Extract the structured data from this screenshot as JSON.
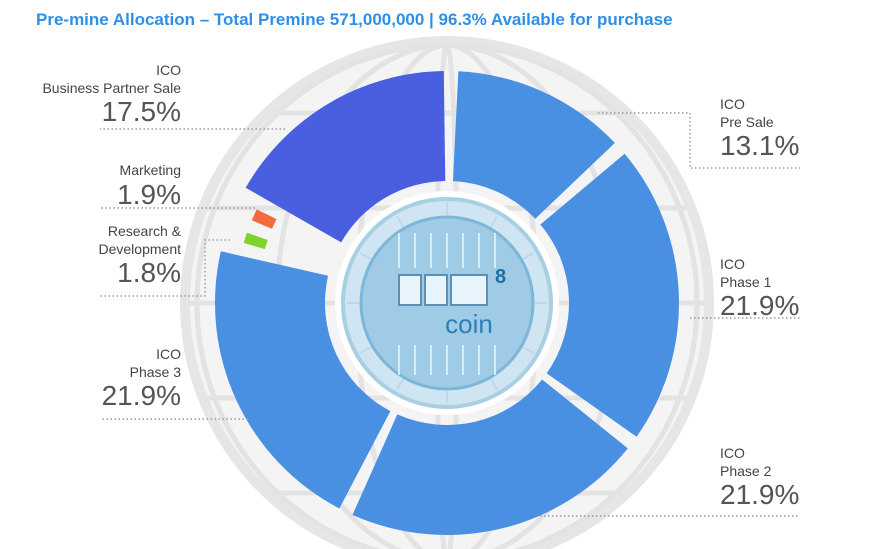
{
  "title": "Pre-mine Allocation – Total Premine 571,000,000 | 96.3% Available for purchase",
  "logo": {
    "coin_text": "coin",
    "superscript": "8"
  },
  "colors": {
    "title": "#2f8fe6",
    "phase": "#4a90e2",
    "business_partner": "#4a5fe0",
    "marketing": "#f26b3a",
    "research": "#7fd32a",
    "globe": "#e6e6e6"
  },
  "chart_data": {
    "type": "pie",
    "title": "Pre-mine Allocation – Total Premine 571,000,000 | 96.3% Available for purchase",
    "slices": [
      {
        "lines": [
          "ICO",
          "Pre Sale"
        ],
        "value": 13.1,
        "label": "13.1%"
      },
      {
        "lines": [
          "ICO",
          "Phase 1"
        ],
        "value": 21.9,
        "label": "21.9%"
      },
      {
        "lines": [
          "ICO",
          "Phase 2"
        ],
        "value": 21.9,
        "label": "21.9%"
      },
      {
        "lines": [
          "ICO",
          "Phase 3"
        ],
        "value": 21.9,
        "label": "21.9%"
      },
      {
        "lines": [
          "Research &",
          "Development"
        ],
        "value": 1.8,
        "label": "1.8%"
      },
      {
        "lines": [
          "Marketing"
        ],
        "value": 1.9,
        "label": "1.9%"
      },
      {
        "lines": [
          "ICO",
          "Business Partner Sale"
        ],
        "value": 17.5,
        "label": "17.5%"
      }
    ]
  }
}
